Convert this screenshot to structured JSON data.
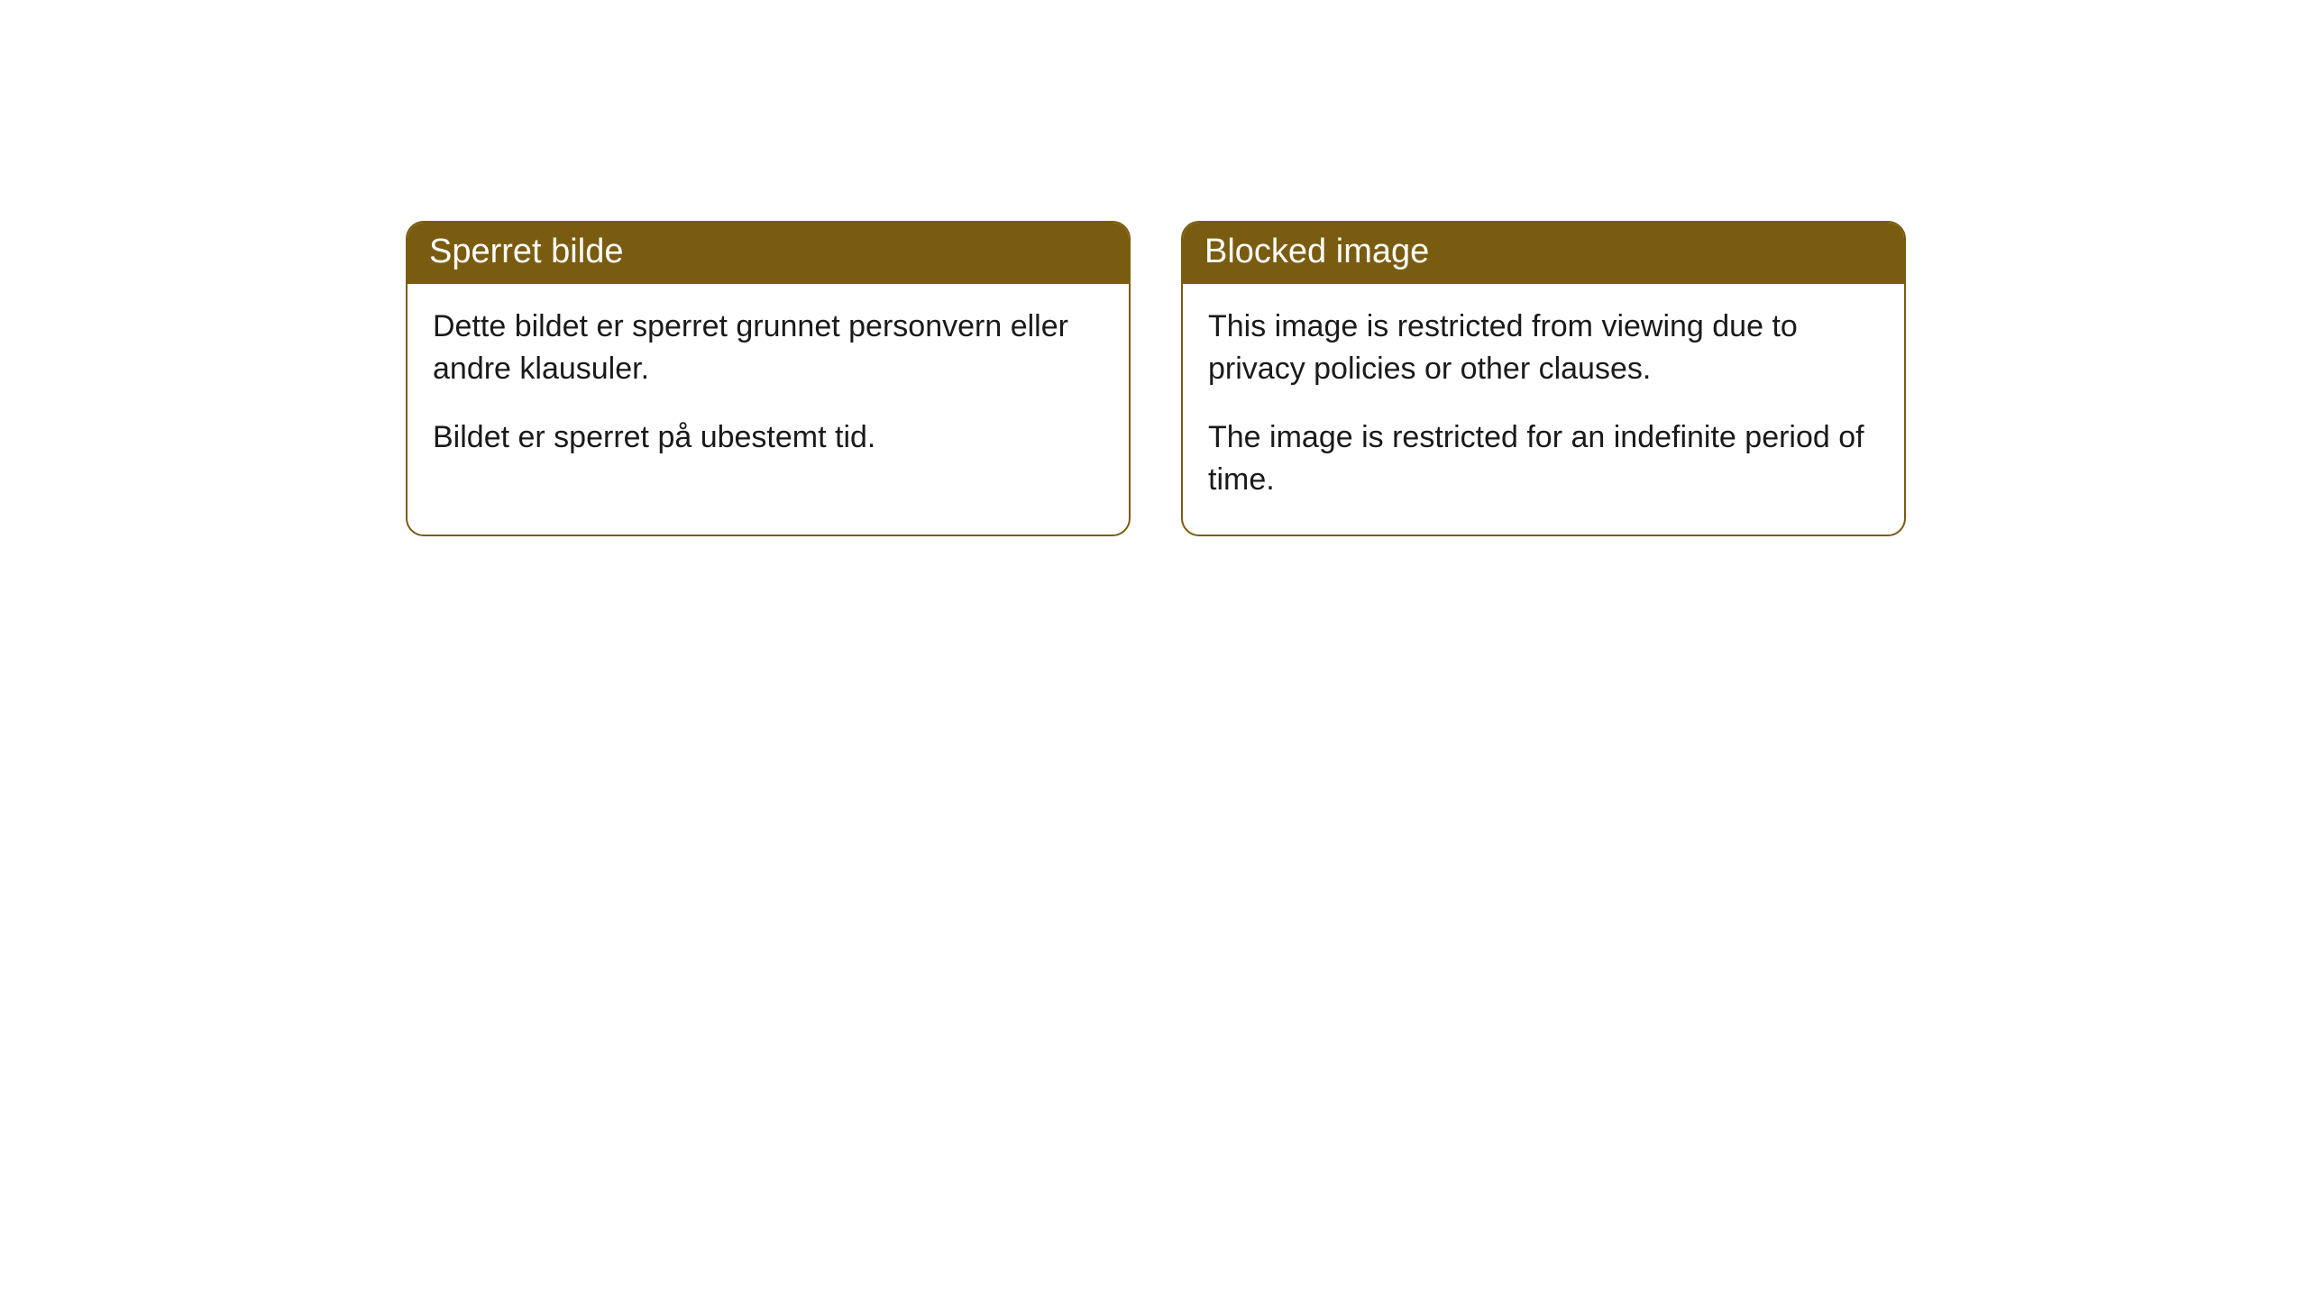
{
  "cards": [
    {
      "title": "Sperret bilde",
      "paragraph1": "Dette bildet er sperret grunnet personvern eller andre klausuler.",
      "paragraph2": "Bildet er sperret på ubestemt tid."
    },
    {
      "title": "Blocked image",
      "paragraph1": "This image is restricted from viewing due to privacy policies or other clauses.",
      "paragraph2": "The image is restricted for an indefinite period of time."
    }
  ],
  "styling": {
    "header_background": "#7a5c10",
    "header_text_color": "#ffffff",
    "body_background": "#ffffff",
    "body_text_color": "#1a1a1a",
    "border_color": "#7a5c10",
    "border_radius": 20,
    "header_fontsize": 38,
    "body_fontsize": 34
  }
}
